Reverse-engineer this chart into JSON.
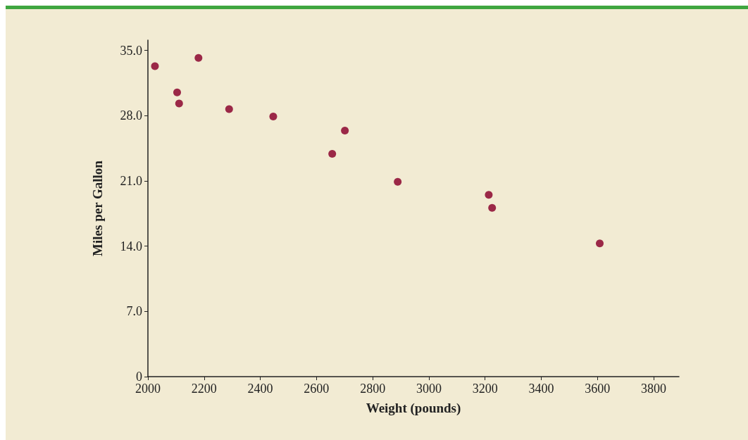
{
  "chart_data": {
    "type": "scatter",
    "xlabel": "Weight (pounds)",
    "ylabel": "Miles per Gallon",
    "x": [
      2025,
      2104,
      2111,
      2180,
      2289,
      2446,
      2656,
      2701,
      2889,
      3213,
      3225,
      3608
    ],
    "series": [
      {
        "color": "#9b2847",
        "values": [
          33.3,
          30.5,
          29.3,
          34.2,
          28.7,
          27.9,
          23.9,
          26.4,
          20.9,
          19.5,
          18.1,
          14.3
        ]
      }
    ],
    "xlim": [
      2000,
      3890
    ],
    "xticks": [
      2000,
      2200,
      2400,
      2600,
      2800,
      3000,
      3200,
      3400,
      3600,
      3800
    ],
    "ylim": [
      0,
      36.1
    ],
    "yticks": [
      {
        "value": 0,
        "label": "0"
      },
      {
        "value": 7,
        "label": "7.0"
      },
      {
        "value": 14,
        "label": "14.0"
      },
      {
        "value": 21,
        "label": "21.0"
      },
      {
        "value": 28,
        "label": "28.0"
      },
      {
        "value": 35,
        "label": "35.0"
      }
    ],
    "grid": false,
    "marker": "circle"
  }
}
